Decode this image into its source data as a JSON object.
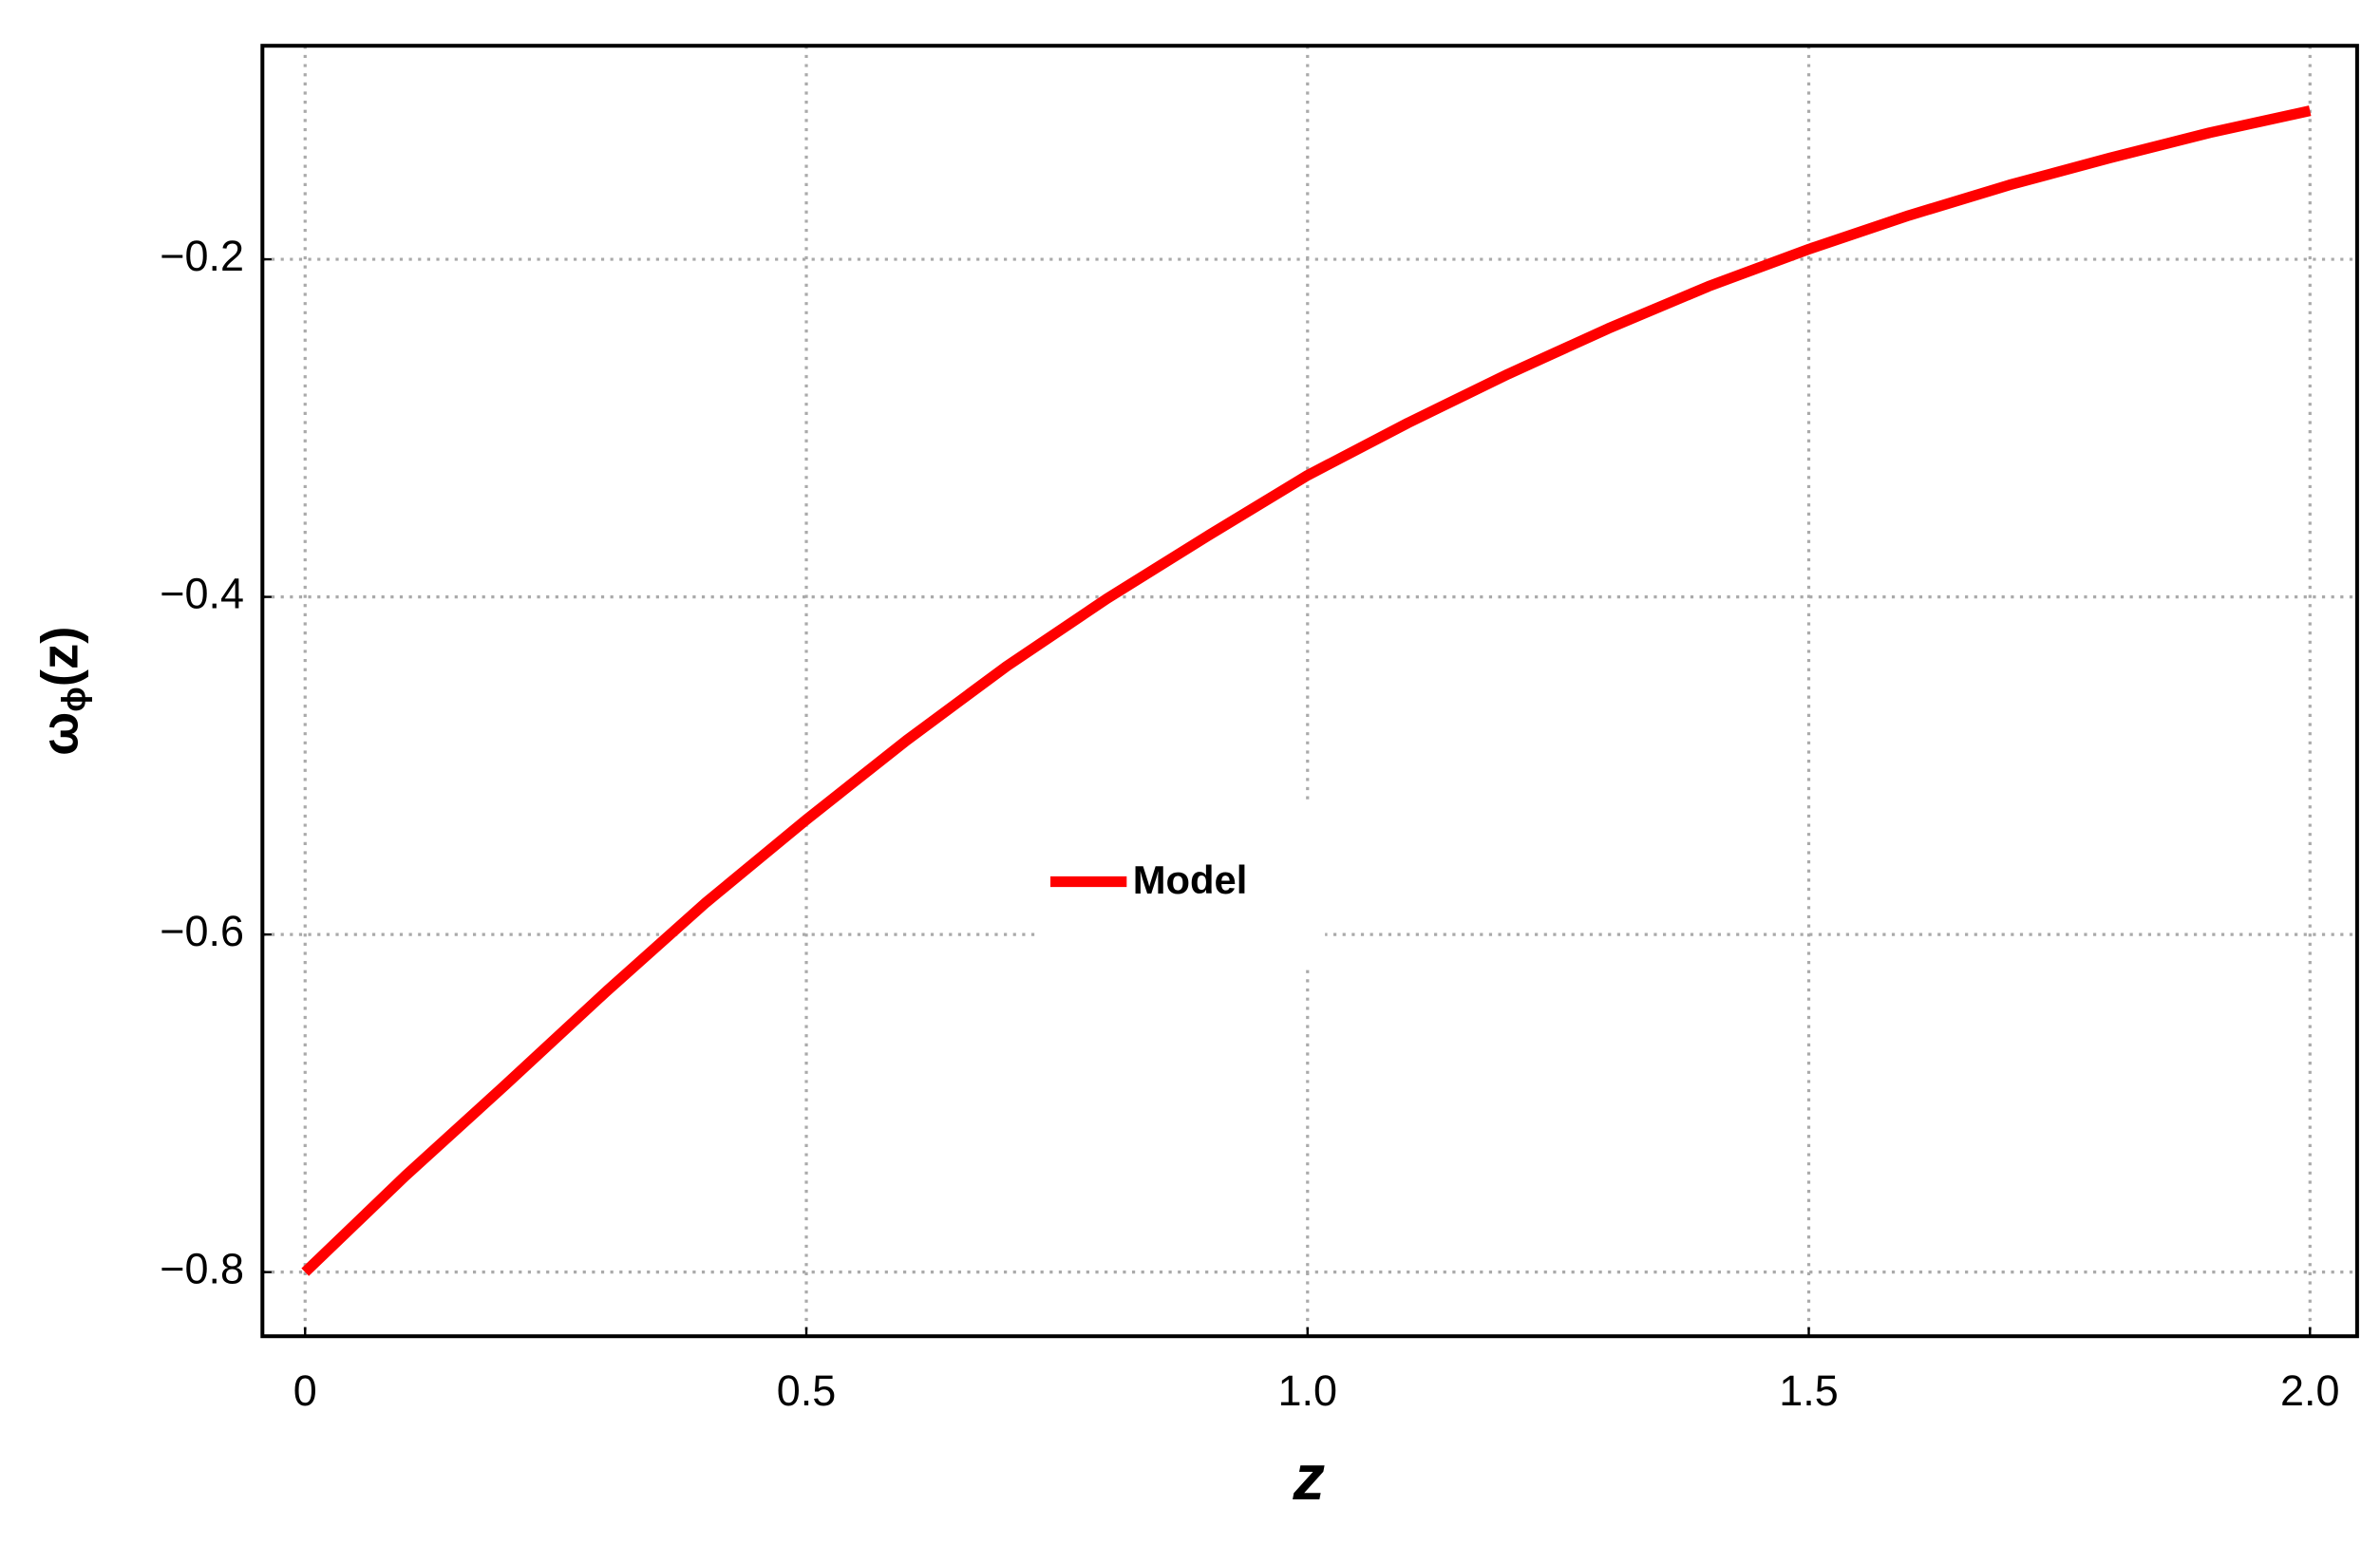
{
  "chart_data": {
    "type": "line",
    "xlabel": "z",
    "ylabel": {
      "base": "ω",
      "sub": "ϕ",
      "rest": "(z)"
    },
    "x": [
      0,
      0.1,
      0.2,
      0.3,
      0.4,
      0.5,
      0.6,
      0.7,
      0.8,
      0.9,
      1.0,
      1.1,
      1.2,
      1.3,
      1.4,
      1.5,
      1.6,
      1.7,
      1.8,
      1.9,
      2.0
    ],
    "series": [
      {
        "name": "Model",
        "color": "#ff0000",
        "values": [
          -0.8,
          -0.743,
          -0.689,
          -0.634,
          -0.581,
          -0.532,
          -0.485,
          -0.441,
          -0.401,
          -0.364,
          -0.328,
          -0.297,
          -0.268,
          -0.241,
          -0.216,
          -0.194,
          -0.174,
          -0.156,
          -0.14,
          -0.125,
          -0.112
        ]
      }
    ],
    "xlim": [
      -0.0426,
      2.047
    ],
    "ylim": [
      -0.838,
      -0.0735
    ],
    "xticks": [
      0,
      0.5,
      {
        "value": 1,
        "label": "1.0"
      },
      1.5,
      {
        "value": 2,
        "label": "2.0"
      }
    ],
    "yticks": [
      {
        "value": -0.8,
        "label": "−0.8"
      },
      {
        "value": -0.6,
        "label": "−0.6"
      },
      {
        "value": -0.4,
        "label": "−0.4"
      },
      {
        "value": -0.2,
        "label": "−0.2"
      }
    ],
    "grid": true,
    "legend": "center"
  }
}
